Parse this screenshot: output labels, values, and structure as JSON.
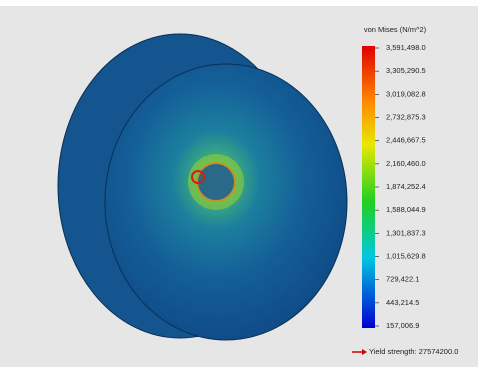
{
  "legend": {
    "title": "von Mises (N/m^2)",
    "labels": [
      "3,591,498.0",
      "3,305,290.5",
      "3,019,082.8",
      "2,732,875.3",
      "2,446,667.5",
      "2,160,460.0",
      "1,874,252.4",
      "1,588,044.9",
      "1,301,837.3",
      "1,015,629.8",
      "729,422.1",
      "443,214.5",
      "157,006.9"
    ]
  },
  "yield_label": "Yield strength: 27574200.0"
}
